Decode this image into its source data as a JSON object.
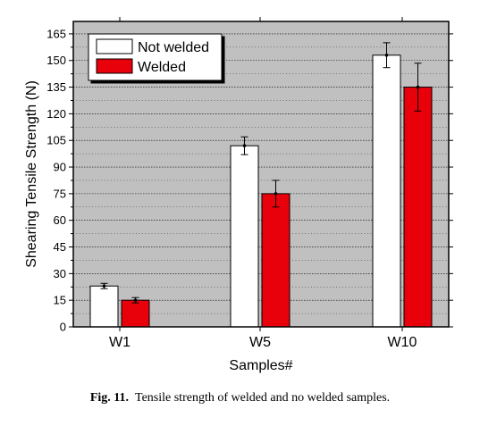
{
  "chart_data": {
    "type": "bar",
    "categories": [
      "W1",
      "W5",
      "W10"
    ],
    "series": [
      {
        "name": "Not welded",
        "color": "#ffffff",
        "values": [
          23,
          102,
          153
        ],
        "errors": [
          1.5,
          5,
          7
        ]
      },
      {
        "name": "Welded",
        "color": "#e8000b",
        "values": [
          15,
          75,
          135
        ],
        "errors": [
          1.5,
          7.5,
          13.5
        ]
      }
    ],
    "xlabel": "Samples#",
    "ylabel": "Shearing Tensile Strength (N)",
    "ylim": [
      0,
      172
    ],
    "yticks": [
      0,
      15,
      30,
      45,
      60,
      75,
      90,
      105,
      120,
      135,
      150,
      165
    ],
    "grid": true,
    "grid_style": "dotted",
    "background": "#c0c0c0",
    "legend": "top-left"
  },
  "caption": {
    "label": "Fig. 11.",
    "text": "Tensile strength of welded and no welded samples."
  }
}
